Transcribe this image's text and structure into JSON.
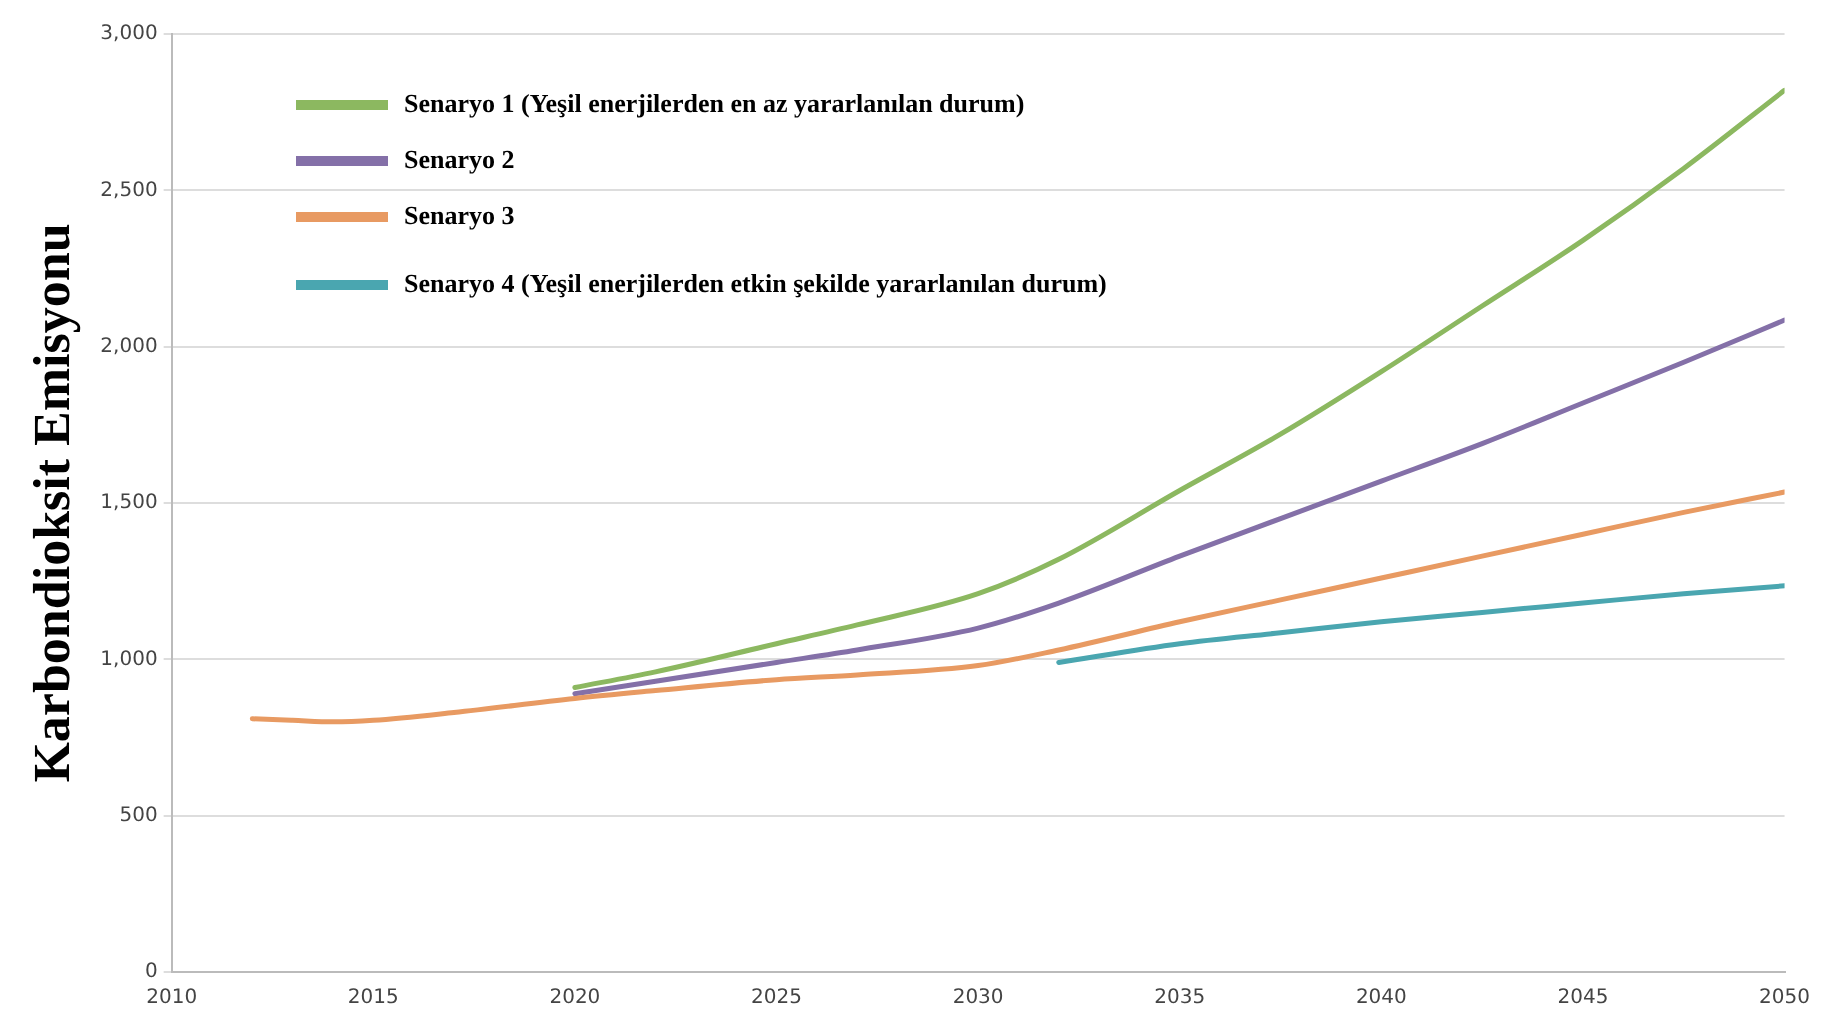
{
  "chart_data": {
    "type": "line",
    "ylabel": "Karbondioksit Emisyonu",
    "xlim": [
      2010,
      2050
    ],
    "xticks": [
      2010,
      2015,
      2020,
      2025,
      2030,
      2035,
      2040,
      2045,
      2050
    ],
    "ylim": [
      0,
      3000
    ],
    "yticks": [
      {
        "value": 0,
        "label": "0"
      },
      {
        "value": 500,
        "label": "500"
      },
      {
        "value": 1000,
        "label": "1,000"
      },
      {
        "value": 1500,
        "label": "1,500"
      },
      {
        "value": 2000,
        "label": "2,000"
      },
      {
        "value": 2500,
        "label": "2,500"
      },
      {
        "value": 3000,
        "label": "3,000"
      }
    ],
    "grid": "y",
    "legend": "top left",
    "marker": "none",
    "line_style": "solid",
    "x": [
      2012,
      2013,
      2014,
      2015,
      2017,
      2020,
      2022,
      2025,
      2027,
      2030,
      2032,
      2035,
      2037.5,
      2040,
      2042.5,
      2045,
      2047.5,
      2050
    ],
    "series": [
      {
        "name": "Senaryo 1 (Yeşil enerjilerden en az yararlanılan durum)",
        "color": "#8cb860",
        "values": [
          null,
          null,
          null,
          null,
          null,
          910,
          960,
          1050,
          1110,
          1210,
          1320,
          1540,
          1720,
          1920,
          2130,
          2340,
          2570,
          2820
        ]
      },
      {
        "name": "Senaryo 2",
        "color": "#8470a8",
        "values": [
          null,
          null,
          null,
          null,
          null,
          890,
          930,
          990,
          1030,
          1100,
          1180,
          1330,
          1450,
          1570,
          1690,
          1820,
          1950,
          2085
        ]
      },
      {
        "name": "Senaryo 3",
        "color": "#e89a62",
        "values": [
          810,
          805,
          800,
          805,
          830,
          875,
          900,
          935,
          950,
          980,
          1030,
          1120,
          1190,
          1260,
          1330,
          1400,
          1470,
          1535
        ]
      },
      {
        "name": "Senaryo 4 (Yeşil enerjilerden etkin şekilde yararlanılan durum)",
        "color": "#4aa6b0",
        "values": [
          null,
          null,
          null,
          null,
          null,
          null,
          null,
          null,
          null,
          null,
          990,
          1050,
          1085,
          1120,
          1150,
          1180,
          1210,
          1235
        ]
      }
    ]
  }
}
